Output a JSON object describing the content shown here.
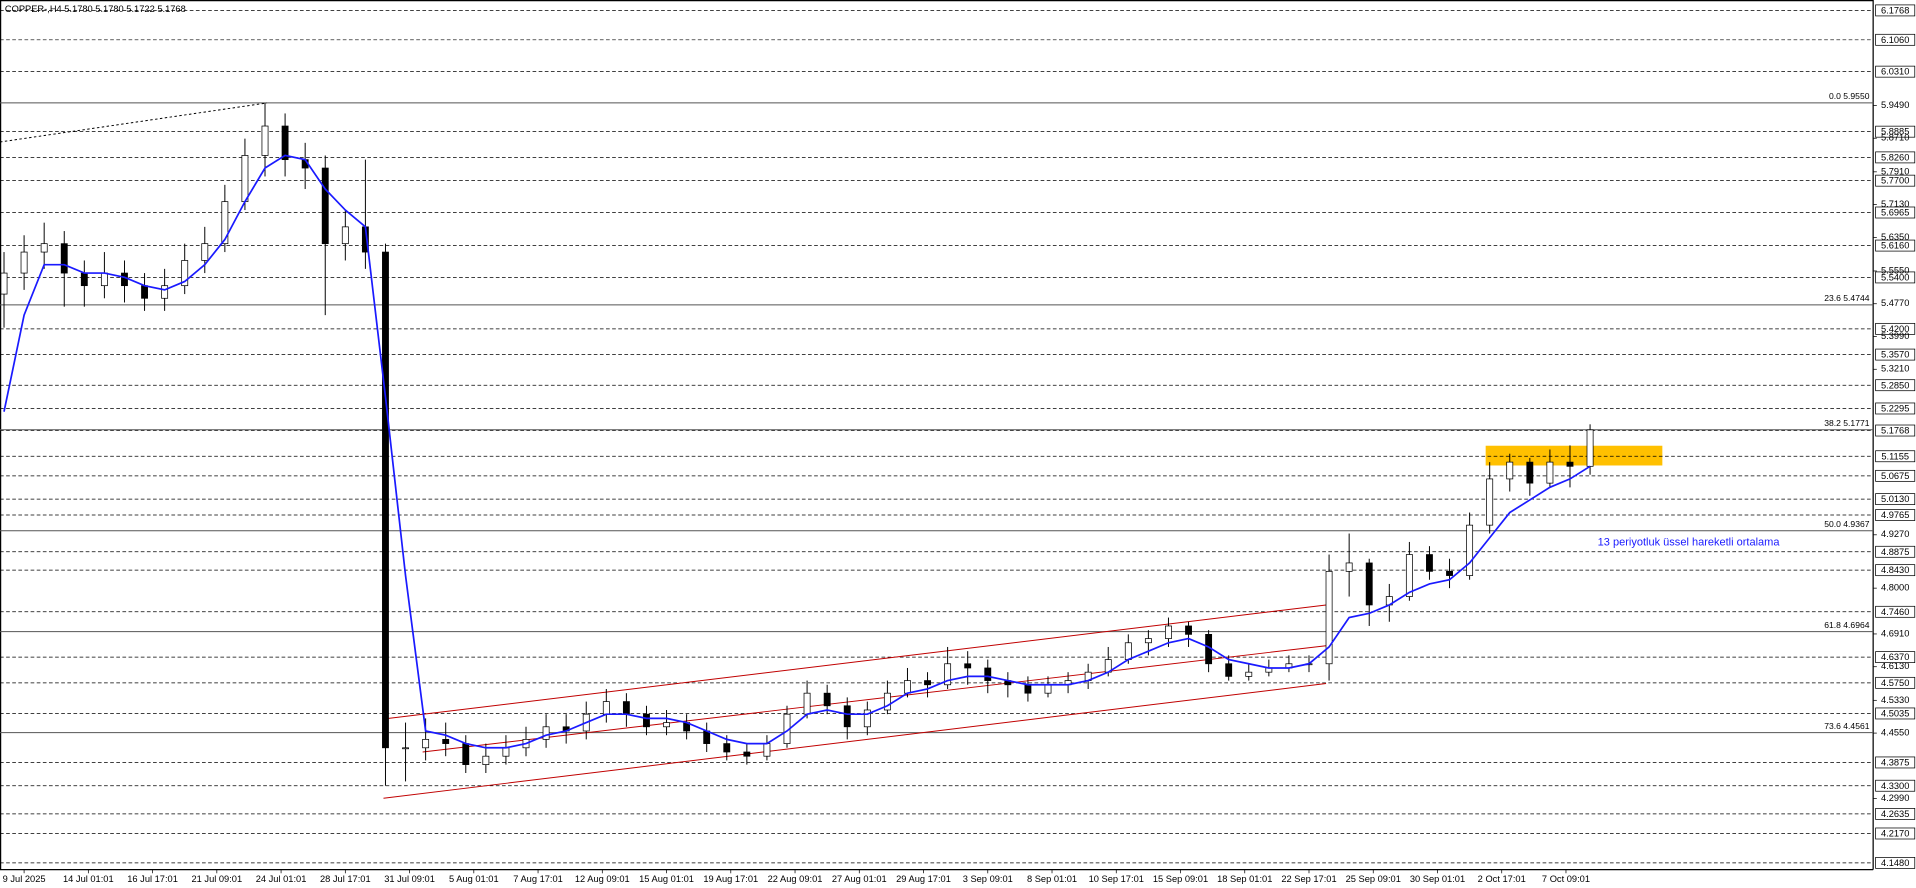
{
  "chart_data": {
    "type": "candlestick",
    "title": "COPPER-,H4 5.1780 5.1780 5.1722 5.1768",
    "annotation": "13 periyotluk üssel hareketli ortalama",
    "annotation_color": "#1a1aff",
    "xlim": [
      -0.2,
      93.1
    ],
    "ylim": [
      4.13,
      6.2
    ],
    "xticks": [
      {
        "value": 1.0,
        "label": "9 Jul 2025"
      },
      {
        "value": 4.2,
        "label": "14 Jul 01:01"
      },
      {
        "value": 7.4,
        "label": "16 Jul 17:01"
      },
      {
        "value": 10.6,
        "label": "21 Jul 09:01"
      },
      {
        "value": 13.8,
        "label": "24 Jul 01:01"
      },
      {
        "value": 17.0,
        "label": "28 Jul 17:01"
      },
      {
        "value": 20.2,
        "label": "31 Jul 09:01"
      },
      {
        "value": 23.4,
        "label": "5 Aug 01:01"
      },
      {
        "value": 26.6,
        "label": "7 Aug 17:01"
      },
      {
        "value": 29.8,
        "label": "12 Aug 09:01"
      },
      {
        "value": 33.0,
        "label": "15 Aug 01:01"
      },
      {
        "value": 36.2,
        "label": "19 Aug 17:01"
      },
      {
        "value": 39.4,
        "label": "22 Aug 09:01"
      },
      {
        "value": 42.6,
        "label": "27 Aug 01:01"
      },
      {
        "value": 45.8,
        "label": "29 Aug 17:01"
      },
      {
        "value": 49.0,
        "label": "3 Sep 09:01"
      },
      {
        "value": 52.2,
        "label": "8 Sep 01:01"
      },
      {
        "value": 55.4,
        "label": "10 Sep 17:01"
      },
      {
        "value": 58.6,
        "label": "15 Sep 09:01"
      },
      {
        "value": 61.8,
        "label": "18 Sep 01:01"
      },
      {
        "value": 65.0,
        "label": "22 Sep 17:01"
      },
      {
        "value": 68.2,
        "label": "25 Sep 09:01"
      },
      {
        "value": 71.4,
        "label": "30 Sep 01:01"
      },
      {
        "value": 74.6,
        "label": "2 Oct 17:01"
      },
      {
        "value": 77.8,
        "label": "7 Oct 09:01"
      }
    ],
    "yticks": [
      {
        "value": 5.949,
        "label": "5.9490"
      },
      {
        "value": 5.871,
        "label": "5.8710"
      },
      {
        "value": 5.791,
        "label": "5.7910"
      },
      {
        "value": 5.713,
        "label": "5.7130"
      },
      {
        "value": 5.635,
        "label": "5.6350"
      },
      {
        "value": 5.555,
        "label": "5.5550"
      },
      {
        "value": 5.477,
        "label": "5.4770"
      },
      {
        "value": 5.399,
        "label": "5.3990"
      },
      {
        "value": 5.321,
        "label": "5.3210"
      },
      {
        "value": 4.927,
        "label": "4.9270"
      },
      {
        "value": 4.8,
        "label": "4.8000"
      },
      {
        "value": 4.691,
        "label": "4.6910"
      },
      {
        "value": 4.613,
        "label": "4.6130"
      },
      {
        "value": 4.533,
        "label": "4.5330"
      },
      {
        "value": 4.455,
        "label": "4.4550"
      },
      {
        "value": 4.299,
        "label": "4.2990"
      }
    ],
    "levels": [
      6.1768,
      {
        "value": 6.106,
        "label": "6.1060"
      },
      {
        "value": 6.031,
        "label": "6.0310"
      },
      5.8885,
      {
        "value": 5.826,
        "label": "5.8260"
      },
      {
        "value": 5.77,
        "label": "5.7700"
      },
      5.6965,
      {
        "value": 5.616,
        "label": "5.6160"
      },
      {
        "value": 5.54,
        "label": "5.5400"
      },
      {
        "value": 5.42,
        "label": "5.4200"
      },
      {
        "value": 5.357,
        "label": "5.3570"
      },
      {
        "value": 5.285,
        "label": "5.2850"
      },
      5.2295,
      5.1768,
      5.1155,
      5.0675,
      {
        "value": 5.013,
        "label": "5.0130"
      },
      4.9765,
      4.8875,
      {
        "value": 4.843,
        "label": "4.8430"
      },
      {
        "value": 4.746,
        "label": "4.7460"
      },
      {
        "value": 4.637,
        "label": "4.6370"
      },
      {
        "value": 4.575,
        "label": "4.5750"
      },
      4.5035,
      4.3875,
      {
        "value": 4.33,
        "label": "4.3300"
      },
      4.2635,
      {
        "value": 4.217,
        "label": "4.2170"
      },
      {
        "value": 4.148,
        "label": "4.1480"
      }
    ],
    "fibo": [
      {
        "label": "0.0 5.9550",
        "value": 5.955
      },
      {
        "label": "23.6 5.4744",
        "value": 5.4744
      },
      {
        "label": "38.2 5.1771",
        "value": 5.1771
      },
      {
        "label": "50.0 4.9367",
        "value": 4.9367
      },
      {
        "label": "61.8 4.6964",
        "value": 4.6964
      },
      {
        "label": "73.6 4.4561",
        "value": 4.4561
      }
    ],
    "trendlines": [
      {
        "x": [
          18.9,
          65.85
        ],
        "y": [
          4.4885,
          4.76
        ],
        "color": "#c00000",
        "dash": false
      },
      {
        "x": [
          20.85,
          65.85
        ],
        "y": [
          4.41,
          4.663
        ],
        "color": "#c00000",
        "dash": false
      },
      {
        "x": [
          18.9,
          65.85
        ],
        "y": [
          4.3,
          4.573
        ],
        "color": "#c00000",
        "dash": false
      },
      {
        "x": [
          -0.2,
          13.1
        ],
        "y": [
          5.862,
          5.955
        ],
        "color": "#000000",
        "dash": true
      }
    ],
    "zone": {
      "x": [
        73.8,
        82.6
      ],
      "y": [
        5.092,
        5.139
      ],
      "color": "#ffc000"
    },
    "candle_color": "#000000",
    "ema_color": "#1a1aff",
    "candles": [
      [
        5.5,
        5.6,
        5.42,
        5.55
      ],
      [
        5.55,
        5.64,
        5.51,
        5.6
      ],
      [
        5.6,
        5.67,
        5.56,
        5.62
      ],
      [
        5.62,
        5.65,
        5.47,
        5.55
      ],
      [
        5.55,
        5.58,
        5.47,
        5.52
      ],
      [
        5.52,
        5.6,
        5.49,
        5.55
      ],
      [
        5.55,
        5.58,
        5.48,
        5.52
      ],
      [
        5.52,
        5.55,
        5.46,
        5.49
      ],
      [
        5.49,
        5.56,
        5.46,
        5.52
      ],
      [
        5.52,
        5.62,
        5.5,
        5.58
      ],
      [
        5.58,
        5.66,
        5.55,
        5.62
      ],
      [
        5.62,
        5.76,
        5.6,
        5.72
      ],
      [
        5.72,
        5.87,
        5.7,
        5.83
      ],
      [
        5.83,
        5.955,
        5.78,
        5.9
      ],
      [
        5.9,
        5.93,
        5.78,
        5.82
      ],
      [
        5.82,
        5.86,
        5.75,
        5.8
      ],
      [
        5.8,
        5.83,
        5.45,
        5.62
      ],
      [
        5.62,
        5.7,
        5.58,
        5.66
      ],
      [
        5.66,
        5.82,
        5.56,
        5.6
      ],
      [
        5.6,
        5.62,
        4.33,
        4.42
      ],
      [
        4.42,
        4.48,
        4.34,
        4.42
      ],
      [
        4.42,
        4.49,
        4.39,
        4.44
      ],
      [
        4.44,
        4.48,
        4.4,
        4.43
      ],
      [
        4.43,
        4.45,
        4.36,
        4.38
      ],
      [
        4.38,
        4.43,
        4.36,
        4.4
      ],
      [
        4.4,
        4.45,
        4.38,
        4.42
      ],
      [
        4.42,
        4.47,
        4.4,
        4.44
      ],
      [
        4.44,
        4.5,
        4.42,
        4.47
      ],
      [
        4.47,
        4.5,
        4.43,
        4.46
      ],
      [
        4.46,
        4.53,
        4.44,
        4.5
      ],
      [
        4.5,
        4.56,
        4.48,
        4.53
      ],
      [
        4.53,
        4.55,
        4.47,
        4.5
      ],
      [
        4.5,
        4.52,
        4.45,
        4.47
      ],
      [
        4.47,
        4.51,
        4.45,
        4.48
      ],
      [
        4.48,
        4.5,
        4.44,
        4.46
      ],
      [
        4.46,
        4.48,
        4.41,
        4.43
      ],
      [
        4.43,
        4.45,
        4.39,
        4.41
      ],
      [
        4.41,
        4.43,
        4.38,
        4.4
      ],
      [
        4.4,
        4.45,
        4.39,
        4.43
      ],
      [
        4.43,
        4.52,
        4.42,
        4.5
      ],
      [
        4.5,
        4.58,
        4.49,
        4.55
      ],
      [
        4.55,
        4.57,
        4.5,
        4.52
      ],
      [
        4.52,
        4.54,
        4.44,
        4.47
      ],
      [
        4.47,
        4.53,
        4.45,
        4.51
      ],
      [
        4.51,
        4.58,
        4.5,
        4.55
      ],
      [
        4.55,
        4.61,
        4.54,
        4.58
      ],
      [
        4.58,
        4.6,
        4.54,
        4.57
      ],
      [
        4.57,
        4.66,
        4.56,
        4.62
      ],
      [
        4.62,
        4.65,
        4.57,
        4.61
      ],
      [
        4.61,
        4.63,
        4.55,
        4.58
      ],
      [
        4.58,
        4.6,
        4.54,
        4.57
      ],
      [
        4.57,
        4.59,
        4.53,
        4.55
      ],
      [
        4.55,
        4.59,
        4.54,
        4.57
      ],
      [
        4.57,
        4.6,
        4.55,
        4.58
      ],
      [
        4.58,
        4.62,
        4.56,
        4.6
      ],
      [
        4.6,
        4.66,
        4.59,
        4.63
      ],
      [
        4.63,
        4.69,
        4.62,
        4.67
      ],
      [
        4.67,
        4.7,
        4.64,
        4.68
      ],
      [
        4.68,
        4.73,
        4.66,
        4.71
      ],
      [
        4.71,
        4.72,
        4.66,
        4.69
      ],
      [
        4.69,
        4.7,
        4.6,
        4.62
      ],
      [
        4.62,
        4.64,
        4.58,
        4.59
      ],
      [
        4.59,
        4.62,
        4.58,
        4.6
      ],
      [
        4.6,
        4.63,
        4.59,
        4.61
      ],
      [
        4.61,
        4.64,
        4.6,
        4.62
      ],
      [
        4.62,
        4.64,
        4.6,
        4.62
      ],
      [
        4.62,
        4.88,
        4.58,
        4.84
      ],
      [
        4.84,
        4.93,
        4.78,
        4.86
      ],
      [
        4.86,
        4.87,
        4.71,
        4.76
      ],
      [
        4.76,
        4.81,
        4.72,
        4.78
      ],
      [
        4.78,
        4.91,
        4.77,
        4.88
      ],
      [
        4.88,
        4.9,
        4.82,
        4.84
      ],
      [
        4.84,
        4.87,
        4.8,
        4.83
      ],
      [
        4.83,
        4.98,
        4.82,
        4.95
      ],
      [
        4.95,
        5.1,
        4.93,
        5.06
      ],
      [
        5.06,
        5.12,
        5.03,
        5.1
      ],
      [
        5.1,
        5.11,
        5.02,
        5.05
      ],
      [
        5.05,
        5.13,
        5.04,
        5.1
      ],
      [
        5.1,
        5.14,
        5.04,
        5.09
      ],
      [
        5.09,
        5.19,
        5.07,
        5.1768
      ]
    ],
    "ema": [
      5.22,
      5.45,
      5.57,
      5.57,
      5.55,
      5.55,
      5.54,
      5.52,
      5.51,
      5.53,
      5.57,
      5.63,
      5.72,
      5.8,
      5.83,
      5.82,
      5.75,
      5.7,
      5.66,
      5.255,
      4.83,
      4.46,
      4.45,
      4.43,
      4.42,
      4.42,
      4.43,
      4.45,
      4.46,
      4.48,
      4.5,
      4.5,
      4.49,
      4.49,
      4.48,
      4.46,
      4.44,
      4.43,
      4.43,
      4.46,
      4.5,
      4.51,
      4.5,
      4.5,
      4.52,
      4.55,
      4.56,
      4.58,
      4.59,
      4.59,
      4.58,
      4.57,
      4.57,
      4.57,
      4.58,
      4.6,
      4.63,
      4.65,
      4.67,
      4.68,
      4.66,
      4.63,
      4.62,
      4.61,
      4.61,
      4.62,
      4.66,
      4.73,
      4.74,
      4.76,
      4.79,
      4.81,
      4.82,
      4.86,
      4.92,
      4.98,
      5.01,
      5.04,
      5.06,
      5.09
    ]
  }
}
